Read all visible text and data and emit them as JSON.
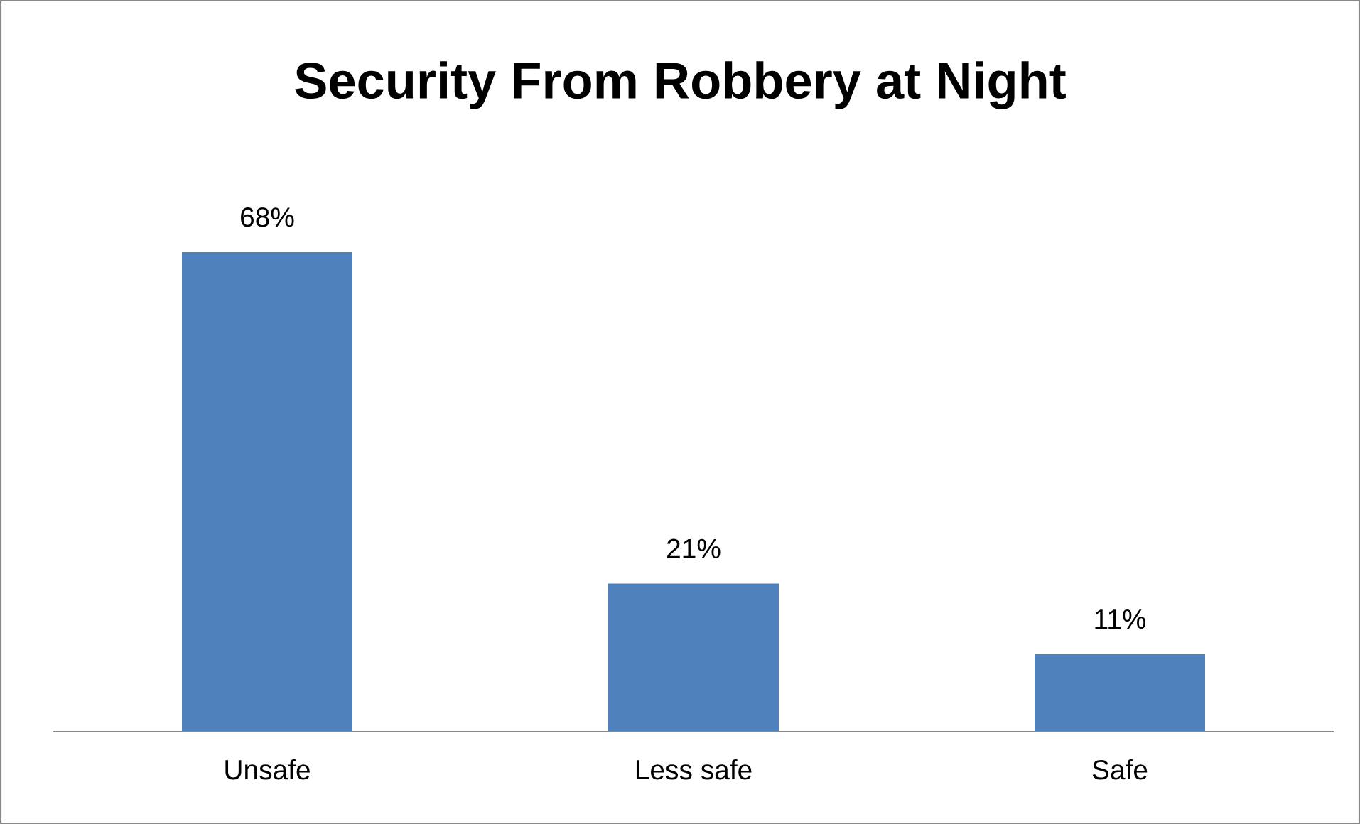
{
  "chart_data": {
    "type": "bar",
    "title": "Security From Robbery at Night",
    "categories": [
      "Unsafe",
      "Less safe",
      "Safe"
    ],
    "values": [
      68,
      21,
      11
    ],
    "value_labels": [
      "68%",
      "21%",
      "11%"
    ],
    "color": "#4f81bd",
    "grid": false,
    "legend": false
  }
}
